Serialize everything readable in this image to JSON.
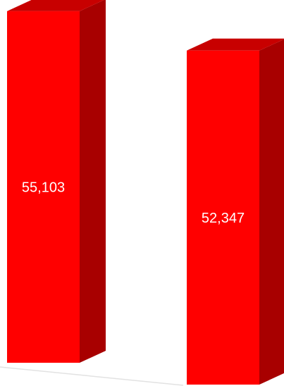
{
  "chart_data": {
    "type": "bar",
    "categories": [
      "",
      ""
    ],
    "values": [
      55103,
      52347
    ],
    "value_labels": [
      "55,103",
      "52,347"
    ],
    "bar_colors": {
      "front": "#ff0000",
      "side": "#a80000",
      "top": "#c80000"
    },
    "grid": false,
    "legend": "none"
  }
}
